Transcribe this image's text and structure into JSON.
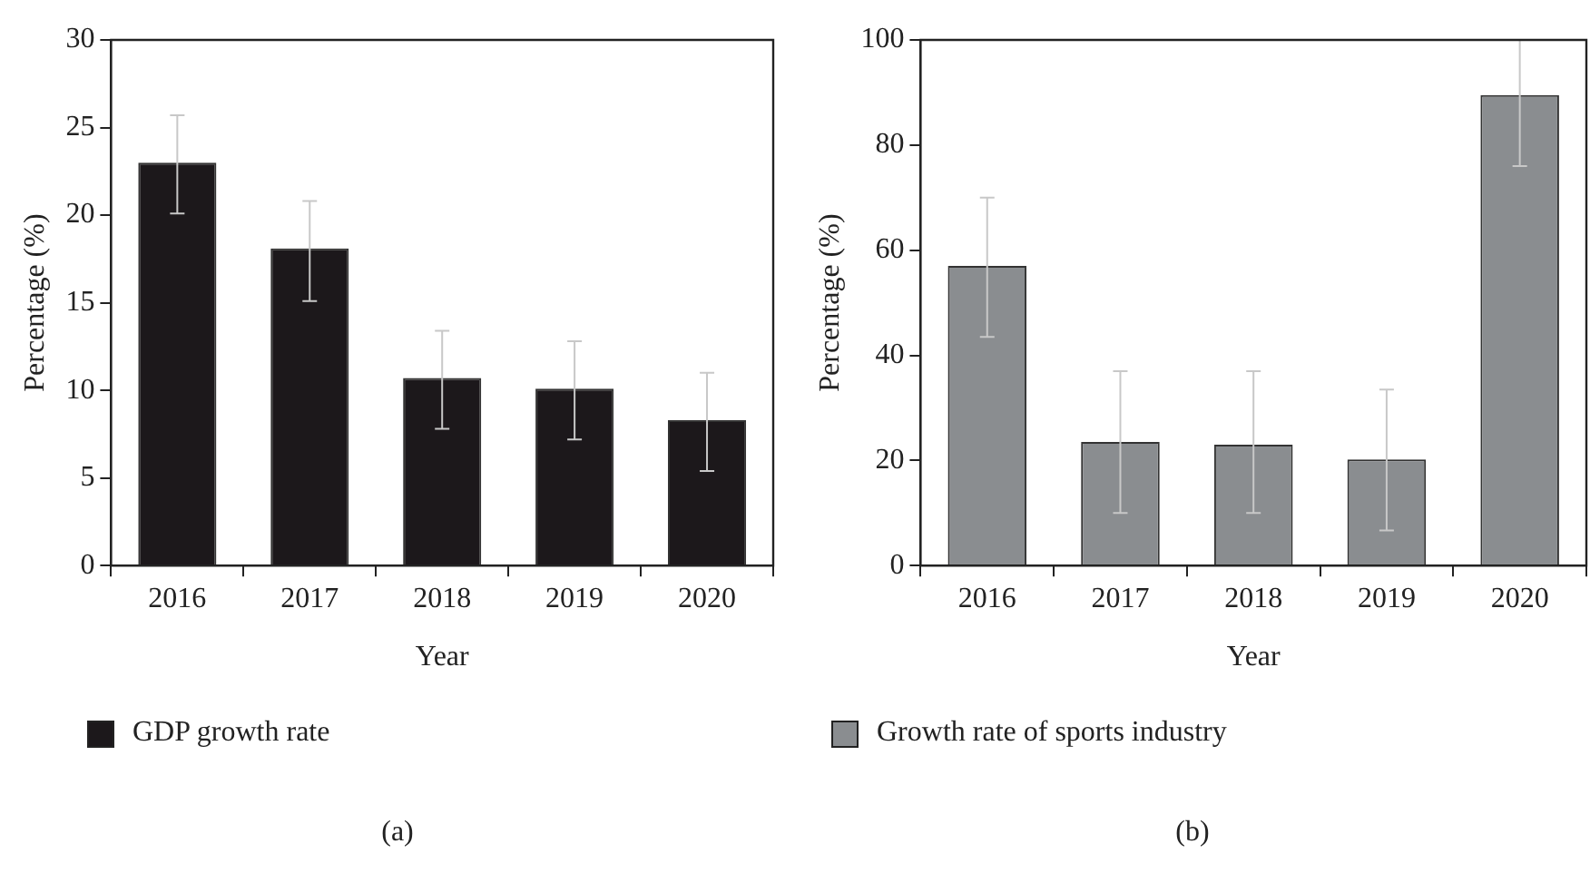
{
  "chart_data": [
    {
      "type": "bar",
      "xlabel": "Year",
      "ylabel": "Percentage (%)",
      "categories": [
        "2016",
        "2017",
        "2018",
        "2019",
        "2020"
      ],
      "series": [
        {
          "name": "GDP growth rate",
          "color": "#1c181b",
          "values": [
            23,
            18.1,
            10.7,
            10.1,
            8.3
          ],
          "errors": [
            [
              20.1,
              25.7
            ],
            [
              15.1,
              20.8
            ],
            [
              7.8,
              13.4
            ],
            [
              7.2,
              12.8
            ],
            [
              5.4,
              11.0
            ]
          ]
        }
      ],
      "ylim": [
        0,
        30
      ],
      "yticks": [
        0,
        5,
        10,
        15,
        20,
        25,
        30
      ],
      "grid": false,
      "legend": "bottom",
      "annotations": [
        "(a)"
      ]
    },
    {
      "type": "bar",
      "xlabel": "Year",
      "ylabel": "Percentage (%)",
      "categories": [
        "2016",
        "2017",
        "2018",
        "2019",
        "2020"
      ],
      "series": [
        {
          "name": "Growth rate of sports industry",
          "color": "#8a8d90",
          "values": [
            57,
            23.5,
            23,
            20.2,
            89.5
          ],
          "errors": [
            [
              43.5,
              70
            ],
            [
              10,
              37
            ],
            [
              10,
              37
            ],
            [
              6.7,
              33.5
            ],
            [
              76,
              100
            ]
          ]
        }
      ],
      "ylim": [
        0,
        100
      ],
      "yticks": [
        0,
        20,
        40,
        60,
        80,
        100
      ],
      "grid": false,
      "legend": "bottom",
      "annotations": [
        "(b)"
      ]
    }
  ]
}
